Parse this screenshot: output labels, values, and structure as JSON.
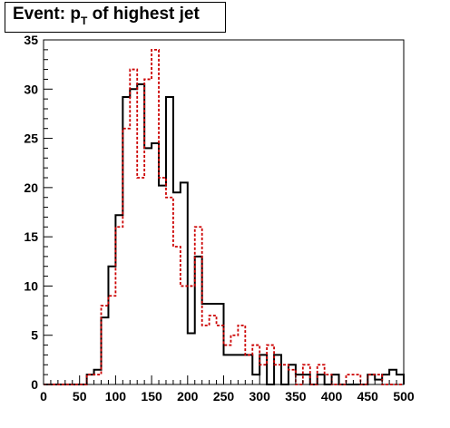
{
  "title": {
    "prefix": "Event: p",
    "subscript": "T",
    "suffix": " of highest jet"
  },
  "chart_data": {
    "type": "histogram",
    "title": "Event: pT of highest jet",
    "bin_width": 10,
    "x_start": 0,
    "xlim": [
      0,
      500
    ],
    "ylim": [
      0,
      35
    ],
    "x_ticks": [
      0,
      50,
      100,
      150,
      200,
      250,
      300,
      350,
      400,
      450,
      500
    ],
    "y_ticks": [
      0,
      5,
      10,
      15,
      20,
      25,
      30,
      35
    ],
    "grid": false,
    "series": [
      {
        "color": "#000000",
        "style": "solid",
        "values": [
          0,
          0,
          0,
          0,
          0,
          0,
          1,
          1.5,
          6.8,
          12,
          17.2,
          29.2,
          30,
          30.5,
          24,
          24.5,
          20.2,
          29.2,
          19.5,
          20.5,
          5.2,
          13,
          8.2,
          8.2,
          8.2,
          3,
          3,
          3,
          3,
          1,
          3,
          0,
          3,
          0,
          2,
          1,
          1,
          0,
          1,
          0,
          1,
          0,
          0,
          0,
          0,
          1,
          0.5,
          1,
          1.5,
          1
        ]
      },
      {
        "color": "#cc0000",
        "style": "dashed",
        "values": [
          0,
          0,
          0,
          0,
          0,
          0,
          1,
          1,
          8,
          9,
          16,
          26,
          32,
          21,
          31,
          34,
          21,
          19,
          14,
          10,
          10,
          16,
          6,
          7,
          6,
          4,
          5,
          6,
          3,
          4,
          2,
          4,
          2,
          2,
          1.5,
          0,
          2,
          0,
          2,
          1,
          0,
          0,
          1,
          1,
          0,
          1,
          1,
          0,
          0,
          0
        ]
      }
    ]
  }
}
